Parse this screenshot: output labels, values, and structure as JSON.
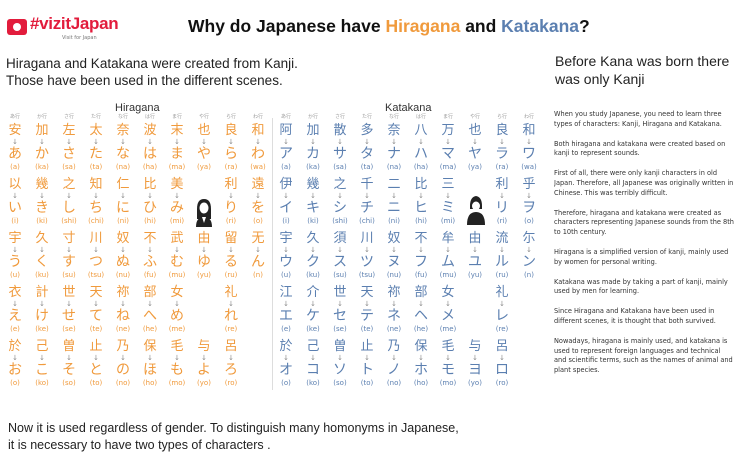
{
  "logo": {
    "text": "#vizitJapan",
    "sub": "Visit for Japan",
    "brand_color": "#e21c3c"
  },
  "title": {
    "prefix": "Why do Japanese have ",
    "hiragana": "Hiragana",
    "middle": " and ",
    "katakana": "Katakana",
    "suffix": "?"
  },
  "intro": {
    "line1": "Hiragana and Katakana were created from Kanji.",
    "line2": "Those have been used in the different scenes."
  },
  "bottom": {
    "line1": "Now it is used regardless of gender.  To distinguish many homonyms in Japanese,",
    "line2": "it is necessary to have two types of characters ."
  },
  "sidebar": {
    "title": "Before Kana was born there was only Kanji",
    "paragraphs": [
      "When you study Japanese, you need to learn three types of characters: Kanji, Hiragana and Katakana.",
      "Both hiragana and katakana were created based on kanji to represent sounds.",
      "First of all, there were only kanji characters in old Japan. Therefore, all Japanese was originally written in Chinese. This was terribly difficult.",
      "Therefore, hiragana and katakana were created as characters representing Japanese sounds from the 8th to 10th century.",
      "Hiragana is a simplified version of kanji, mainly used by women for personal writing.",
      "Katakana was made by taking a part of kanji, mainly used by men for learning.",
      "Since Hiragana and Katakana have been used in different scenes, it is thought that both survived.",
      "Nowadays, hiragana is mainly used, and katakana is used to represent foreign languages and technical and scientific terms, such as the names of animal and plant species."
    ]
  },
  "chart_colors": {
    "hiragana": "#f09a3c",
    "katakana": "#5b7fb0"
  },
  "hiragana": {
    "label": "Hiragana",
    "columns": [
      "あ行",
      "か行",
      "さ行",
      "た行",
      "な行",
      "は行",
      "ま行",
      "や行",
      "ら行",
      "わ行"
    ],
    "rows": [
      [
        [
          "安",
          "あ",
          "(a)"
        ],
        [
          "加",
          "か",
          "(ka)"
        ],
        [
          "左",
          "さ",
          "(sa)"
        ],
        [
          "太",
          "た",
          "(ta)"
        ],
        [
          "奈",
          "な",
          "(na)"
        ],
        [
          "波",
          "は",
          "(ha)"
        ],
        [
          "末",
          "ま",
          "(ma)"
        ],
        [
          "也",
          "や",
          "(ya)"
        ],
        [
          "良",
          "ら",
          "(ra)"
        ],
        [
          "和",
          "わ",
          "(wa)"
        ]
      ],
      [
        [
          "以",
          "い",
          "(i)"
        ],
        [
          "幾",
          "き",
          "(ki)"
        ],
        [
          "之",
          "し",
          "(shi)"
        ],
        [
          "知",
          "ち",
          "(chi)"
        ],
        [
          "仁",
          "に",
          "(ni)"
        ],
        [
          "比",
          "ひ",
          "(hi)"
        ],
        [
          "美",
          "み",
          "(mi)"
        ],
        null,
        [
          "利",
          "り",
          "(ri)"
        ],
        [
          "遠",
          "を",
          "(o)"
        ]
      ],
      [
        [
          "宇",
          "う",
          "(u)"
        ],
        [
          "久",
          "く",
          "(ku)"
        ],
        [
          "寸",
          "す",
          "(su)"
        ],
        [
          "川",
          "つ",
          "(tsu)"
        ],
        [
          "奴",
          "ぬ",
          "(nu)"
        ],
        [
          "不",
          "ふ",
          "(fu)"
        ],
        [
          "武",
          "む",
          "(mu)"
        ],
        [
          "由",
          "ゆ",
          "(yu)"
        ],
        [
          "留",
          "る",
          "(ru)"
        ],
        [
          "无",
          "ん",
          "(n)"
        ]
      ],
      [
        [
          "衣",
          "え",
          "(e)"
        ],
        [
          "計",
          "け",
          "(ke)"
        ],
        [
          "世",
          "せ",
          "(se)"
        ],
        [
          "天",
          "て",
          "(te)"
        ],
        [
          "祢",
          "ね",
          "(ne)"
        ],
        [
          "部",
          "へ",
          "(he)"
        ],
        [
          "女",
          "め",
          "(me)"
        ],
        null,
        [
          "礼",
          "れ",
          "(re)"
        ],
        null
      ],
      [
        [
          "於",
          "お",
          "(o)"
        ],
        [
          "己",
          "こ",
          "(ko)"
        ],
        [
          "曽",
          "そ",
          "(so)"
        ],
        [
          "止",
          "と",
          "(to)"
        ],
        [
          "乃",
          "の",
          "(no)"
        ],
        [
          "保",
          "ほ",
          "(ho)"
        ],
        [
          "毛",
          "も",
          "(mo)"
        ],
        [
          "与",
          "よ",
          "(yo)"
        ],
        [
          "呂",
          "ろ",
          "(ro)"
        ],
        null
      ]
    ]
  },
  "katakana": {
    "label": "Katakana",
    "columns": [
      "あ行",
      "か行",
      "さ行",
      "た行",
      "な行",
      "は行",
      "ま行",
      "や行",
      "ら行",
      "わ行"
    ],
    "rows": [
      [
        [
          "阿",
          "ア",
          "(a)"
        ],
        [
          "加",
          "カ",
          "(ka)"
        ],
        [
          "散",
          "サ",
          "(sa)"
        ],
        [
          "多",
          "タ",
          "(ta)"
        ],
        [
          "奈",
          "ナ",
          "(na)"
        ],
        [
          "八",
          "ハ",
          "(ha)"
        ],
        [
          "万",
          "マ",
          "(ma)"
        ],
        [
          "也",
          "ヤ",
          "(ya)"
        ],
        [
          "良",
          "ラ",
          "(ra)"
        ],
        [
          "和",
          "ワ",
          "(wa)"
        ]
      ],
      [
        [
          "伊",
          "イ",
          "(i)"
        ],
        [
          "幾",
          "キ",
          "(ki)"
        ],
        [
          "之",
          "シ",
          "(shi)"
        ],
        [
          "千",
          "チ",
          "(chi)"
        ],
        [
          "二",
          "ニ",
          "(ni)"
        ],
        [
          "比",
          "ヒ",
          "(hi)"
        ],
        [
          "三",
          "ミ",
          "(mi)"
        ],
        null,
        [
          "利",
          "リ",
          "(ri)"
        ],
        [
          "乎",
          "ヲ",
          "(o)"
        ]
      ],
      [
        [
          "宇",
          "ウ",
          "(u)"
        ],
        [
          "久",
          "ク",
          "(ku)"
        ],
        [
          "須",
          "ス",
          "(su)"
        ],
        [
          "川",
          "ツ",
          "(tsu)"
        ],
        [
          "奴",
          "ヌ",
          "(nu)"
        ],
        [
          "不",
          "フ",
          "(fu)"
        ],
        [
          "牟",
          "ム",
          "(mu)"
        ],
        [
          "由",
          "ユ",
          "(yu)"
        ],
        [
          "流",
          "ル",
          "(ru)"
        ],
        [
          "尓",
          "ン",
          "(n)"
        ]
      ],
      [
        [
          "江",
          "エ",
          "(e)"
        ],
        [
          "介",
          "ケ",
          "(ke)"
        ],
        [
          "世",
          "セ",
          "(se)"
        ],
        [
          "天",
          "テ",
          "(te)"
        ],
        [
          "祢",
          "ネ",
          "(ne)"
        ],
        [
          "部",
          "ヘ",
          "(he)"
        ],
        [
          "女",
          "メ",
          "(me)"
        ],
        null,
        [
          "礼",
          "レ",
          "(re)"
        ],
        null
      ],
      [
        [
          "於",
          "オ",
          "(o)"
        ],
        [
          "己",
          "コ",
          "(ko)"
        ],
        [
          "曽",
          "ソ",
          "(so)"
        ],
        [
          "止",
          "ト",
          "(to)"
        ],
        [
          "乃",
          "ノ",
          "(no)"
        ],
        [
          "保",
          "ホ",
          "(ho)"
        ],
        [
          "毛",
          "モ",
          "(mo)"
        ],
        [
          "与",
          "ヨ",
          "(yo)"
        ],
        [
          "呂",
          "ロ",
          "(ro)"
        ],
        null
      ]
    ]
  },
  "arrow_glyph": "↓",
  "icons": {
    "logo": "torii-flag-icon",
    "woman": "woman-figure-icon",
    "man": "man-figure-icon"
  }
}
